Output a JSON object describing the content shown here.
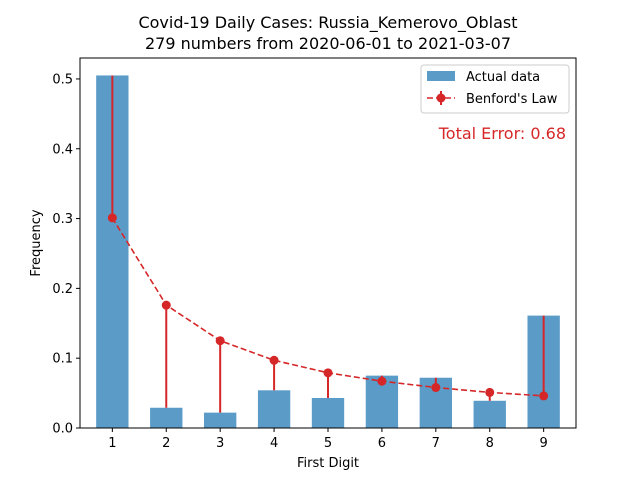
{
  "chart_data": {
    "type": "bar",
    "title": "Covid-19 Daily Cases: Russia_Kemerovo_Oblast",
    "subtitle": "279 numbers from 2020-06-01 to 2021-03-07",
    "xlabel": "First Digit",
    "ylabel": "Frequency",
    "categories": [
      "1",
      "2",
      "3",
      "4",
      "5",
      "6",
      "7",
      "8",
      "9"
    ],
    "ylim": [
      0,
      0.53
    ],
    "yticks": [
      "0.0",
      "0.1",
      "0.2",
      "0.3",
      "0.4",
      "0.5"
    ],
    "legend_position": "top-right",
    "grid": false,
    "series": [
      {
        "name": "Actual data",
        "kind": "bar",
        "color": "#5b9bc8",
        "values": [
          0.505,
          0.029,
          0.022,
          0.054,
          0.043,
          0.075,
          0.072,
          0.039,
          0.161
        ]
      },
      {
        "name": "Benford's Law",
        "kind": "line-dashed-markers-errorbars",
        "color": "#d62728",
        "values": [
          0.301,
          0.176,
          0.125,
          0.097,
          0.079,
          0.067,
          0.058,
          0.051,
          0.046
        ]
      }
    ],
    "annotation": "Total Error: 0.68"
  }
}
